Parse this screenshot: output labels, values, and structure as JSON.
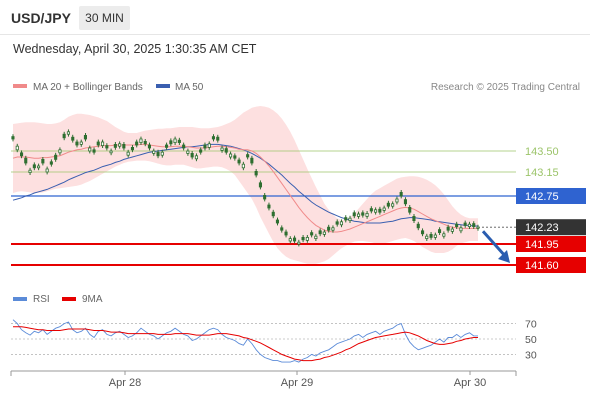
{
  "header": {
    "symbol": "USD/JPY",
    "timeframe": "30 MIN",
    "datetime": "Wednesday, April 30, 2025 1:30:35 AM CET"
  },
  "legend": {
    "ma20": "MA 20 + Bollinger Bands",
    "ma50": "MA 50",
    "credit": "Research © 2025 Trading Central",
    "rsi": "RSI",
    "rsi_ma": "9MA"
  },
  "colors": {
    "ma20": "#f08a8a",
    "ma50": "#3a5fb0",
    "bb_fill": "#fde0e0",
    "candle": "#2f6f31",
    "resistance_green": "#9cc46a",
    "pivot_blue": "#2f63d0",
    "support_red": "#e60000",
    "last_price": "#333333",
    "arrow": "#2a5db0"
  },
  "chart_data": [
    {
      "type": "candlestick",
      "x_labels": [
        "Apr 28",
        "Apr 29",
        "Apr 30"
      ],
      "y_range": [
        141.35,
        144.35
      ],
      "levels": [
        {
          "value": 143.5,
          "label": "143.50",
          "kind": "resistance"
        },
        {
          "value": 143.15,
          "label": "143.15",
          "kind": "resistance"
        },
        {
          "value": 142.75,
          "label": "142.75",
          "kind": "pivot"
        },
        {
          "value": 142.23,
          "label": "142.23",
          "kind": "last"
        },
        {
          "value": 141.95,
          "label": "141.95",
          "kind": "support"
        },
        {
          "value": 141.6,
          "label": "141.60",
          "kind": "support"
        }
      ],
      "closes": [
        143.7,
        143.58,
        143.42,
        143.3,
        143.18,
        143.22,
        143.25,
        143.3,
        143.2,
        143.28,
        143.36,
        143.52,
        143.72,
        143.82,
        143.68,
        143.6,
        143.65,
        143.7,
        143.55,
        143.48,
        143.6,
        143.65,
        143.55,
        143.5,
        143.56,
        143.62,
        143.55,
        143.48,
        143.52,
        143.6,
        143.7,
        143.62,
        143.55,
        143.5,
        143.42,
        143.48,
        143.56,
        143.62,
        143.7,
        143.64,
        143.55,
        143.5,
        143.4,
        143.42,
        143.48,
        143.55,
        143.62,
        143.7,
        143.68,
        143.55,
        143.48,
        143.45,
        143.38,
        143.3,
        143.28,
        143.4,
        143.3,
        143.1,
        142.9,
        142.7,
        142.55,
        142.42,
        142.3,
        142.18,
        142.1,
        142.04,
        142.0,
        141.98,
        142.02,
        142.06,
        142.1,
        142.08,
        142.12,
        142.15,
        142.18,
        142.22,
        142.28,
        142.32,
        142.35,
        142.38,
        142.42,
        142.45,
        142.43,
        142.46,
        142.5,
        142.52,
        142.48,
        142.55,
        142.58,
        142.62,
        142.7,
        142.75,
        142.62,
        142.48,
        142.34,
        142.22,
        142.12,
        142.08,
        142.06,
        142.1,
        142.14,
        142.12,
        142.18,
        142.2,
        142.24,
        142.22,
        142.26,
        142.28,
        142.24,
        142.23
      ],
      "open_offsets": [
        0.04,
        -0.06,
        0.05,
        0.08,
        -0.04,
        0.05,
        -0.03,
        0.06,
        -0.05,
        0.04,
        0.07,
        -0.05,
        0.06,
        -0.04,
        0.05,
        0.05,
        -0.04,
        0.06,
        -0.05,
        0.04,
        0.05,
        -0.06,
        0.04,
        -0.03,
        0.05,
        -0.04,
        0.06,
        -0.05,
        0.04,
        0.05,
        -0.06,
        0.04,
        0.05,
        -0.04,
        0.06,
        -0.05,
        0.04,
        0.05,
        -0.06,
        0.04,
        0.05,
        -0.04,
        0.06,
        -0.05,
        0.04,
        0.05,
        -0.06,
        0.04,
        0.05,
        -0.04,
        0.06,
        -0.05,
        0.04,
        0.05,
        -0.06,
        0.04,
        0.08,
        0.06,
        0.07,
        0.06,
        0.05,
        0.06,
        0.05,
        0.04,
        0.05,
        -0.04,
        0.05,
        -0.03,
        0.04,
        -0.05,
        0.04,
        -0.04,
        0.05,
        -0.04,
        0.05,
        -0.04,
        0.04,
        -0.05,
        0.04,
        -0.04,
        0.05,
        -0.04,
        0.04,
        -0.05,
        0.04,
        -0.04,
        0.05,
        -0.04,
        0.05,
        -0.04,
        -0.05,
        0.06,
        0.07,
        0.08,
        0.07,
        0.06,
        0.05,
        -0.04,
        0.05,
        -0.04,
        0.05,
        -0.04,
        0.05,
        -0.04,
        0.04,
        -0.05,
        0.04,
        -0.04,
        0.05,
        -0.02
      ],
      "ma20": [
        143.38,
        143.4,
        143.4,
        143.4,
        143.39,
        143.38,
        143.38,
        143.39,
        143.39,
        143.4,
        143.41,
        143.42,
        143.45,
        143.48,
        143.5,
        143.52,
        143.53,
        143.55,
        143.56,
        143.57,
        143.58,
        143.59,
        143.59,
        143.59,
        143.6,
        143.6,
        143.6,
        143.6,
        143.6,
        143.6,
        143.61,
        143.61,
        143.6,
        143.59,
        143.58,
        143.57,
        143.57,
        143.57,
        143.58,
        143.58,
        143.58,
        143.57,
        143.56,
        143.55,
        143.55,
        143.55,
        143.56,
        143.57,
        143.58,
        143.58,
        143.57,
        143.56,
        143.55,
        143.53,
        143.52,
        143.52,
        143.5,
        143.46,
        143.4,
        143.33,
        143.25,
        143.16,
        143.06,
        142.96,
        142.86,
        142.76,
        142.66,
        142.56,
        142.47,
        142.39,
        142.32,
        142.26,
        142.22,
        142.18,
        142.16,
        142.15,
        142.15,
        142.16,
        142.18,
        142.2,
        142.23,
        142.26,
        142.29,
        142.32,
        142.35,
        142.38,
        142.41,
        142.44,
        142.47,
        142.5,
        142.53,
        142.55,
        142.56,
        142.55,
        142.53,
        142.49,
        142.45,
        142.41,
        142.37,
        142.34,
        142.31,
        142.28,
        142.25,
        142.23,
        142.22,
        142.21,
        142.21,
        142.21,
        142.21,
        142.21
      ],
      "bb_upper": [
        143.95,
        143.96,
        143.97,
        143.98,
        143.98,
        143.98,
        143.97,
        143.96,
        143.95,
        143.95,
        143.96,
        143.98,
        144.02,
        144.07,
        144.1,
        144.12,
        144.12,
        144.11,
        144.1,
        144.08,
        144.06,
        144.03,
        144.0,
        143.95,
        143.9,
        143.86,
        143.82,
        143.8,
        143.8,
        143.8,
        143.82,
        143.84,
        143.85,
        143.86,
        143.87,
        143.87,
        143.88,
        143.88,
        143.89,
        143.9,
        143.9,
        143.9,
        143.9,
        143.89,
        143.88,
        143.88,
        143.88,
        143.89,
        143.9,
        143.92,
        143.95,
        143.98,
        144.02,
        144.08,
        144.14,
        144.18,
        144.22,
        144.24,
        144.25,
        144.24,
        144.22,
        144.18,
        144.12,
        144.04,
        143.94,
        143.82,
        143.68,
        143.52,
        143.36,
        143.2,
        143.05,
        142.9,
        142.76,
        142.62,
        142.52,
        142.44,
        142.38,
        142.35,
        142.36,
        142.4,
        142.46,
        142.54,
        142.62,
        142.7,
        142.78,
        142.84,
        142.88,
        142.92,
        142.96,
        143.0,
        143.04,
        143.06,
        143.07,
        143.08,
        143.08,
        143.07,
        143.05,
        143.02,
        142.98,
        142.93,
        142.86,
        142.78,
        142.68,
        142.58,
        142.5,
        142.44,
        142.4,
        142.38,
        142.38,
        142.38
      ],
      "bb_lower": [
        142.8,
        142.82,
        142.83,
        142.82,
        142.81,
        142.8,
        142.8,
        142.81,
        142.83,
        142.85,
        142.87,
        142.88,
        142.89,
        142.9,
        142.91,
        142.92,
        142.94,
        142.97,
        143.0,
        143.04,
        143.08,
        143.12,
        143.16,
        143.2,
        143.24,
        143.27,
        143.3,
        143.32,
        143.33,
        143.34,
        143.34,
        143.34,
        143.33,
        143.31,
        143.29,
        143.27,
        143.26,
        143.26,
        143.27,
        143.27,
        143.27,
        143.25,
        143.23,
        143.21,
        143.21,
        143.22,
        143.23,
        143.24,
        143.24,
        143.23,
        143.2,
        143.16,
        143.1,
        143.0,
        142.9,
        142.8,
        142.7,
        142.56,
        142.4,
        142.26,
        142.12,
        141.99,
        141.88,
        141.8,
        141.74,
        141.7,
        141.68,
        141.66,
        141.64,
        141.62,
        141.62,
        141.62,
        141.64,
        141.66,
        141.7,
        141.76,
        141.82,
        141.88,
        141.92,
        141.96,
        141.99,
        142.0,
        142.0,
        141.99,
        141.98,
        141.96,
        141.96,
        141.96,
        141.98,
        142.0,
        142.02,
        142.04,
        142.05,
        142.03,
        142.0,
        141.95,
        141.9,
        141.86,
        141.82,
        141.8,
        141.8,
        141.8,
        141.82,
        141.86,
        141.92,
        141.96,
        141.98,
        142.0,
        142.0,
        142.0
      ],
      "ma50": [
        142.68,
        142.7,
        142.72,
        142.75,
        142.77,
        142.8,
        142.82,
        142.84,
        142.86,
        142.89,
        142.92,
        142.95,
        142.98,
        143.02,
        143.05,
        143.08,
        143.11,
        143.14,
        143.16,
        143.18,
        143.21,
        143.24,
        143.26,
        143.28,
        143.31,
        143.33,
        143.36,
        143.38,
        143.4,
        143.42,
        143.44,
        143.46,
        143.48,
        143.49,
        143.5,
        143.51,
        143.52,
        143.53,
        143.54,
        143.55,
        143.56,
        143.57,
        143.57,
        143.58,
        143.59,
        143.6,
        143.61,
        143.61,
        143.61,
        143.6,
        143.59,
        143.58,
        143.56,
        143.54,
        143.52,
        143.49,
        143.46,
        143.42,
        143.38,
        143.33,
        143.28,
        143.22,
        143.16,
        143.1,
        143.03,
        142.96,
        142.9,
        142.83,
        142.77,
        142.71,
        142.65,
        142.6,
        142.56,
        142.52,
        142.48,
        142.45,
        142.42,
        142.39,
        142.37,
        142.35,
        142.33,
        142.32,
        142.31,
        142.3,
        142.3,
        142.3,
        142.3,
        142.31,
        142.32,
        142.33,
        142.35,
        142.37,
        142.38,
        142.39,
        142.39,
        142.38,
        142.37,
        142.36,
        142.35,
        142.33,
        142.32,
        142.31,
        142.3,
        142.29,
        142.28,
        142.27,
        142.26,
        142.26,
        142.25,
        142.25
      ]
    },
    {
      "type": "line",
      "panel": "RSI",
      "y_ticks": [
        70,
        50,
        30
      ],
      "y_range": [
        15,
        85
      ],
      "rsi": [
        75,
        70,
        62,
        58,
        55,
        60,
        58,
        62,
        56,
        60,
        64,
        66,
        70,
        72,
        62,
        58,
        60,
        64,
        56,
        52,
        60,
        62,
        56,
        54,
        58,
        60,
        56,
        52,
        54,
        58,
        64,
        60,
        56,
        54,
        50,
        54,
        58,
        60,
        64,
        60,
        56,
        54,
        48,
        50,
        54,
        58,
        62,
        64,
        62,
        56,
        52,
        50,
        48,
        44,
        42,
        50,
        44,
        36,
        30,
        26,
        24,
        22,
        22,
        20,
        20,
        20,
        22,
        20,
        24,
        26,
        30,
        28,
        32,
        34,
        36,
        40,
        44,
        46,
        48,
        50,
        54,
        56,
        52,
        56,
        58,
        60,
        56,
        60,
        62,
        64,
        68,
        70,
        56,
        46,
        40,
        36,
        38,
        40,
        42,
        46,
        50,
        46,
        52,
        52,
        56,
        52,
        56,
        58,
        54,
        54
      ],
      "rsi_ma": [
        66,
        66,
        66,
        65,
        64,
        63,
        62,
        62,
        61,
        61,
        61,
        61,
        62,
        63,
        63,
        63,
        63,
        63,
        62,
        61,
        61,
        61,
        60,
        59,
        59,
        59,
        58,
        57,
        57,
        57,
        57,
        57,
        57,
        57,
        56,
        56,
        56,
        56,
        57,
        57,
        57,
        57,
        56,
        55,
        55,
        55,
        55,
        56,
        57,
        57,
        57,
        56,
        55,
        54,
        52,
        51,
        49,
        47,
        45,
        42,
        39,
        36,
        33,
        30,
        28,
        26,
        24,
        23,
        22,
        22,
        22,
        23,
        24,
        26,
        27,
        29,
        31,
        33,
        36,
        38,
        41,
        44,
        46,
        48,
        50,
        52,
        53,
        54,
        55,
        56,
        57,
        58,
        59,
        58,
        56,
        54,
        51,
        48,
        46,
        44,
        43,
        43,
        44,
        45,
        47,
        48,
        50,
        51,
        52,
        52
      ]
    }
  ],
  "x_axis": {
    "labels": [
      "Apr 28",
      "Apr 29",
      "Apr 30"
    ]
  }
}
